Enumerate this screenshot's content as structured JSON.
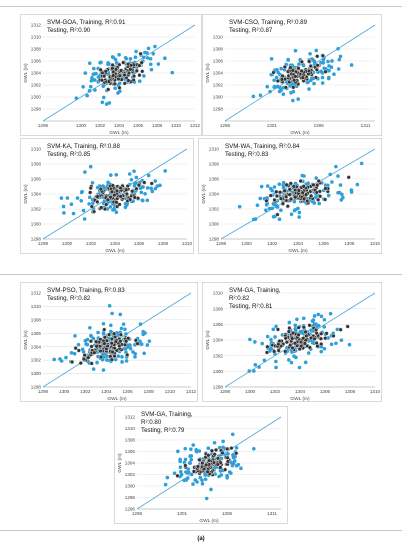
{
  "caption": "(a)",
  "colors": {
    "training": "#2e9fd8",
    "testing": "#333333",
    "testing_outline": "#e6e6e6",
    "fit_line": "#4aa8d8",
    "grid": "#e2e2e2",
    "axis_text": "#444444"
  },
  "chart_data": [
    {
      "type": "scatter",
      "title_lines": [
        "SVM-GOA, Training, R²:0.91",
        "Testing, R²:0.90"
      ],
      "xlabel": "GWL (m)",
      "ylabel": "GWL (m)",
      "xlim": [
        1296,
        1312
      ],
      "ylim": [
        1296,
        1312
      ],
      "xticks": [
        "1296",
        "1300",
        "1302",
        "1304",
        "1306",
        "1308",
        "1310",
        "1312"
      ],
      "yticks": [
        "1312",
        "1310",
        "1308",
        "1306",
        "1304",
        "1302",
        "1300",
        "1298"
      ],
      "grid": true,
      "line": "1:1",
      "series": [
        {
          "role": "training",
          "center": [
            1304,
            1304
          ],
          "spread": [
            1.8,
            1.8
          ],
          "n": 130
        },
        {
          "role": "testing",
          "center": [
            1304,
            1304
          ],
          "spread": [
            1.2,
            1.0
          ],
          "n": 95
        }
      ]
    },
    {
      "type": "scatter",
      "title_lines": [
        "SVM-CSO, Training, R²:0.89",
        "Testing, R²:0.87"
      ],
      "xlabel": "GWL (m)",
      "ylabel": "GWL (m)",
      "xlim": [
        1296,
        1312
      ],
      "ylim": [
        1296,
        1312
      ],
      "xticks": [
        "1296",
        "1301",
        "1306",
        "1311"
      ],
      "yticks": [
        "1310",
        "1308",
        "1306",
        "1304",
        "1302",
        "1300",
        "1298"
      ],
      "grid": true,
      "line": "1:1",
      "series": [
        {
          "role": "training",
          "center": [
            1304,
            1304
          ],
          "spread": [
            2.0,
            1.8
          ],
          "n": 130
        },
        {
          "role": "testing",
          "center": [
            1304,
            1304
          ],
          "spread": [
            1.2,
            1.0
          ],
          "n": 95
        }
      ]
    },
    {
      "type": "scatter",
      "title_lines": [
        "SVM-KA, Training, R²:0.88",
        "Testing, R²:0.85"
      ],
      "xlabel": "GWL (m)",
      "ylabel": "GWL (m)",
      "xlim": [
        1298,
        1310
      ],
      "ylim": [
        1298,
        1310
      ],
      "xticks": [
        "1298",
        "1300",
        "1302",
        "1304",
        "1306",
        "1308",
        "1310"
      ],
      "yticks": [
        "1310",
        "1308",
        "1306",
        "1304",
        "1302",
        "1300",
        "1298"
      ],
      "grid": true,
      "line": "1:1",
      "series": [
        {
          "role": "training",
          "center": [
            1304,
            1304
          ],
          "spread": [
            1.8,
            1.5
          ],
          "n": 130
        },
        {
          "role": "testing",
          "center": [
            1304,
            1304
          ],
          "spread": [
            1.1,
            0.8
          ],
          "n": 95
        }
      ]
    },
    {
      "type": "scatter",
      "title_lines": [
        "SVM-WA, Training, R²:0.84",
        "Testing, R²:0.83"
      ],
      "xlabel": "GWL (m)",
      "ylabel": "GWL (m)",
      "xlim": [
        1298,
        1310
      ],
      "ylim": [
        1298,
        1310
      ],
      "xticks": [
        "1298",
        "1300",
        "1302",
        "1304",
        "1306",
        "1308",
        "1310"
      ],
      "yticks": [
        "1310",
        "1308",
        "1306",
        "1304",
        "1302",
        "1300",
        "1298"
      ],
      "grid": true,
      "line": "1:1",
      "series": [
        {
          "role": "training",
          "center": [
            1304,
            1304
          ],
          "spread": [
            1.8,
            1.5
          ],
          "n": 130
        },
        {
          "role": "testing",
          "center": [
            1304,
            1304
          ],
          "spread": [
            1.1,
            0.8
          ],
          "n": 95
        }
      ]
    },
    {
      "type": "scatter",
      "title_lines": [
        "SVM-PSO, Training, R²:0.83",
        "Testing, R²:0.82"
      ],
      "xlabel": "GWL (m)",
      "ylabel": "GWL (m)",
      "xlim": [
        1298,
        1312
      ],
      "ylim": [
        1298,
        1312
      ],
      "xticks": [
        "1298",
        "1300",
        "1302",
        "1304",
        "1306",
        "1308",
        "1310",
        "1312"
      ],
      "yticks": [
        "1312",
        "1310",
        "1308",
        "1306",
        "1304",
        "1302",
        "1300",
        "1298"
      ],
      "grid": true,
      "line": "1:1",
      "series": [
        {
          "role": "training",
          "center": [
            1304,
            1304
          ],
          "spread": [
            2.0,
            1.8
          ],
          "n": 130
        },
        {
          "role": "testing",
          "center": [
            1304,
            1304
          ],
          "spread": [
            1.2,
            1.0
          ],
          "n": 95
        }
      ]
    },
    {
      "type": "scatter",
      "title_lines": [
        "SVM-GA, Training,",
        "R²:0.82",
        "Testing, R²:0.81"
      ],
      "xlabel": "GWL (m)",
      "ylabel": "GWL (m)",
      "xlim": [
        1298,
        1310
      ],
      "ylim": [
        1298,
        1310
      ],
      "xticks": [
        "1298",
        "1300",
        "1302",
        "1304",
        "1306",
        "1308",
        "1310"
      ],
      "yticks": [
        "1310",
        "1308",
        "1306",
        "1304",
        "1302",
        "1300",
        "1298"
      ],
      "grid": true,
      "line": "1:1",
      "series": [
        {
          "role": "training",
          "center": [
            1304,
            1304
          ],
          "spread": [
            1.8,
            1.6
          ],
          "n": 130
        },
        {
          "role": "testing",
          "center": [
            1304,
            1304
          ],
          "spread": [
            1.2,
            0.9
          ],
          "n": 95
        }
      ]
    },
    {
      "type": "scatter",
      "title_lines": [
        "SVM-GA, Training,",
        "R²:0.80",
        "Testing, R²:0.79"
      ],
      "xlabel": "GWL (m)",
      "ylabel": "GWL (m)",
      "xlim": [
        1296,
        1312
      ],
      "ylim": [
        1296,
        1312
      ],
      "xticks": [
        "1296",
        "1301",
        "1306",
        "1311"
      ],
      "yticks": [
        "1312",
        "1310",
        "1308",
        "1306",
        "1304",
        "1302",
        "1300",
        "1298",
        "1296"
      ],
      "grid": true,
      "line": "1:1",
      "series": [
        {
          "role": "training",
          "center": [
            1304,
            1304
          ],
          "spread": [
            2.0,
            1.8
          ],
          "n": 130
        },
        {
          "role": "testing",
          "center": [
            1304,
            1304
          ],
          "spread": [
            1.2,
            1.0
          ],
          "n": 95
        }
      ]
    }
  ]
}
